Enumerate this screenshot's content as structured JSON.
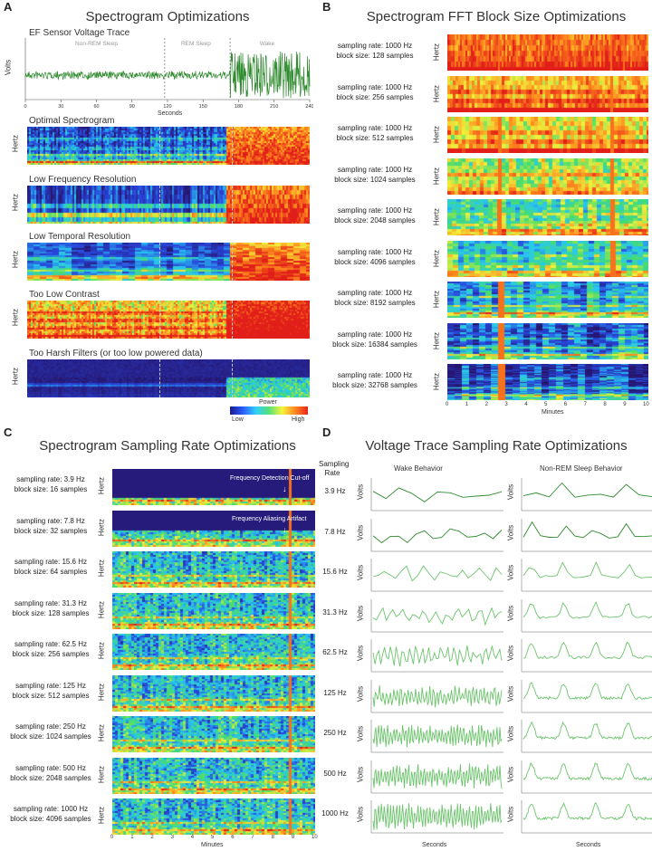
{
  "panel_a": {
    "letter": "A",
    "title": "Spectrogram Optimizations",
    "trace_title": "EF Sensor Voltage Trace",
    "trace_ylabel": "Volts",
    "trace_xlabel": "Seconds",
    "trace_xticks": [
      "0",
      "30",
      "60",
      "90",
      "120",
      "150",
      "180",
      "210",
      "240"
    ],
    "states": [
      "Non-REM Sleep",
      "REM Sleep",
      "Wake"
    ],
    "spec_ylabel": "Hertz",
    "spectrograms": [
      "Optimal Spectrogram",
      "Low Frequency Resolution",
      "Low Temporal Resolution",
      "Too Low Contrast",
      "Too Harsh Filters (or too low powered data)"
    ],
    "colorbar_title": "Power",
    "colorbar_low": "Low",
    "colorbar_high": "High"
  },
  "panel_b": {
    "letter": "B",
    "title": "Spectrogram FFT Block Size Optimizations",
    "ylabel": "Hertz",
    "xlabel": "Minutes",
    "xticks": [
      "0",
      "1",
      "2",
      "3",
      "4",
      "5",
      "6",
      "7",
      "8",
      "9",
      "10"
    ],
    "rows": [
      {
        "rate": "sampling rate: 1000 Hz",
        "block": "block size: 128 samples"
      },
      {
        "rate": "sampling rate: 1000 Hz",
        "block": "block size: 256 samples"
      },
      {
        "rate": "sampling rate: 1000 Hz",
        "block": "block size: 512 samples"
      },
      {
        "rate": "sampling rate: 1000 Hz",
        "block": "block size: 1024 samples"
      },
      {
        "rate": "sampling rate: 1000 Hz",
        "block": "block size: 2048 samples"
      },
      {
        "rate": "sampling rate: 1000 Hz",
        "block": "block size: 4096 samples"
      },
      {
        "rate": "sampling rate: 1000 Hz",
        "block": "block size: 8192 samples"
      },
      {
        "rate": "sampling rate: 1000 Hz",
        "block": "block size: 16384 samples"
      },
      {
        "rate": "sampling rate: 1000 Hz",
        "block": "block size: 32768 samples"
      }
    ]
  },
  "panel_c": {
    "letter": "C",
    "title": "Spectrogram Sampling Rate Optimizations",
    "ylabel": "Hertz",
    "xlabel": "Minutes",
    "xticks": [
      "0",
      "1",
      "2",
      "3",
      "4",
      "5",
      "6",
      "7",
      "8",
      "9",
      "10"
    ],
    "annotation_1": "Frequency Detection Cut-off",
    "annotation_2": "Frequency Aliasing Artifact",
    "rows": [
      {
        "rate": "sampling rate: 3.9 Hz",
        "block": "block size: 16 samples"
      },
      {
        "rate": "sampling rate: 7.8 Hz",
        "block": "block size: 32 samples"
      },
      {
        "rate": "sampling rate: 15.6 Hz",
        "block": "block size: 64 samples"
      },
      {
        "rate": "sampling rate: 31.3 Hz",
        "block": "block size: 128 samples"
      },
      {
        "rate": "sampling rate: 62.5 Hz",
        "block": "block size: 256 samples"
      },
      {
        "rate": "sampling rate: 125 Hz",
        "block": "block size: 512 samples"
      },
      {
        "rate": "sampling rate: 250 Hz",
        "block": "block size: 1024 samples"
      },
      {
        "rate": "sampling rate: 500 Hz",
        "block": "block size: 2048 samples"
      },
      {
        "rate": "sampling rate: 1000 Hz",
        "block": "block size: 4096 samples"
      }
    ]
  },
  "panel_d": {
    "letter": "D",
    "title": "Voltage Trace Sampling Rate Optimizations",
    "rate_header": "Sampling Rate",
    "col_wake": "Wake Behavior",
    "col_sleep": "Non-REM Sleep Behavior",
    "ylabel": "Volts",
    "xlabel": "Seconds",
    "rates": [
      "3.9 Hz",
      "7.8 Hz",
      "15.6 Hz",
      "31.3 Hz",
      "62.5 Hz",
      "125 Hz",
      "250 Hz",
      "500 Hz",
      "1000 Hz"
    ]
  },
  "colors": {
    "trace_green": "#2e8b2e",
    "trace_light_green": "#6cc46c",
    "spec_bg": "#2a1b6e"
  }
}
